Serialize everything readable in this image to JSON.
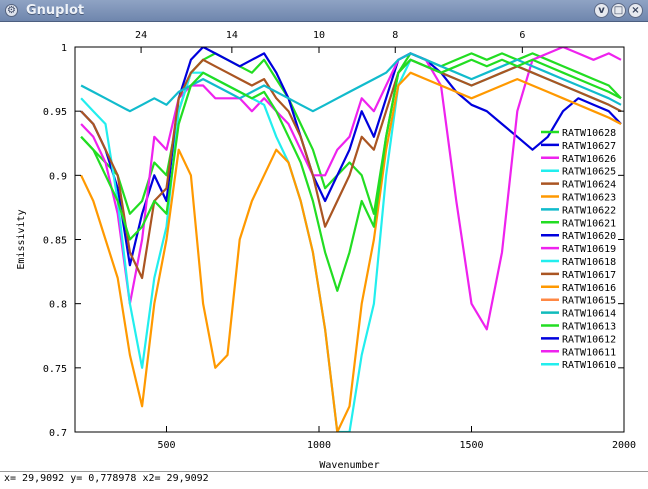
{
  "window": {
    "title": "Gnuplot",
    "app_icon_glyph": "⚙",
    "minimize_glyph": "v",
    "maximize_glyph": "□",
    "close_glyph": "×"
  },
  "status": {
    "coords": "x= 29,9092 y= 0,778978 x2= 29,9092"
  },
  "chart_data": {
    "type": "line",
    "xlabel": "Wavenumber",
    "ylabel": "Emissivity",
    "xlim": [
      200,
      2000
    ],
    "ylim": [
      0.7,
      1.0
    ],
    "x_ticks": [
      "500",
      "1000",
      "1500",
      "2000"
    ],
    "x_tick_values": [
      500,
      1000,
      1500,
      2000
    ],
    "y_ticks": [
      "1",
      "0.95",
      "0.9",
      "0.85",
      "0.8",
      "0.75",
      "0.7"
    ],
    "y_tick_values": [
      1.0,
      0.95,
      0.9,
      0.85,
      0.8,
      0.75,
      0.7
    ],
    "x2_label": "",
    "x2_ticks": [
      "24",
      "14",
      "10",
      "8",
      "6"
    ],
    "x2_tick_micrometers": [
      24,
      14,
      10,
      8,
      6
    ],
    "grid": false,
    "legend_position": "right",
    "x": [
      220,
      260,
      300,
      340,
      380,
      420,
      460,
      500,
      540,
      580,
      620,
      660,
      700,
      740,
      780,
      820,
      860,
      900,
      940,
      980,
      1020,
      1060,
      1100,
      1140,
      1180,
      1220,
      1260,
      1300,
      1350,
      1400,
      1450,
      1500,
      1550,
      1600,
      1650,
      1700,
      1750,
      1800,
      1850,
      1900,
      1950,
      1990
    ],
    "series": [
      {
        "name": "RATW10628",
        "color": "#22dd22",
        "values": [
          0.93,
          0.92,
          0.91,
          0.9,
          0.87,
          0.88,
          0.91,
          0.9,
          0.95,
          0.98,
          0.99,
          0.995,
          0.99,
          0.985,
          0.98,
          0.99,
          0.975,
          0.96,
          0.94,
          0.92,
          0.89,
          0.9,
          0.91,
          0.9,
          0.87,
          0.93,
          0.98,
          0.995,
          0.99,
          0.985,
          0.99,
          0.995,
          0.99,
          0.995,
          0.99,
          0.995,
          0.99,
          0.985,
          0.98,
          0.975,
          0.97,
          0.96
        ]
      },
      {
        "name": "RATW10627",
        "color": "#0000dd",
        "values": [
          0.95,
          0.94,
          0.92,
          0.89,
          0.83,
          0.87,
          0.9,
          0.88,
          0.96,
          0.99,
          1.0,
          0.995,
          0.99,
          0.985,
          0.99,
          0.995,
          0.98,
          0.96,
          0.93,
          0.9,
          0.88,
          0.9,
          0.92,
          0.95,
          0.93,
          0.96,
          0.99,
          0.995,
          0.99,
          0.98,
          0.965,
          0.955,
          0.95,
          0.94,
          0.93,
          0.92,
          0.93,
          0.95,
          0.96,
          0.955,
          0.95,
          0.94
        ]
      },
      {
        "name": "RATW10626",
        "color": "#ee22ee",
        "values": [
          0.94,
          0.93,
          0.91,
          0.87,
          0.8,
          0.85,
          0.93,
          0.92,
          0.96,
          0.97,
          0.97,
          0.96,
          0.96,
          0.96,
          0.95,
          0.96,
          0.95,
          0.94,
          0.92,
          0.9,
          0.9,
          0.92,
          0.93,
          0.96,
          0.95,
          0.97,
          0.99,
          0.995,
          0.99,
          0.97,
          0.88,
          0.8,
          0.78,
          0.84,
          0.95,
          0.99,
          0.995,
          1.0,
          0.995,
          0.99,
          0.995,
          0.99
        ]
      },
      {
        "name": "RATW10625",
        "color": "#22eeee",
        "values": [
          0.96,
          0.95,
          0.94,
          0.88,
          0.8,
          0.75,
          0.82,
          0.86,
          0.95,
          0.98,
          0.98,
          0.975,
          0.97,
          0.965,
          0.96,
          0.955,
          0.93,
          0.91,
          0.88,
          0.84,
          0.78,
          0.7,
          0.7,
          0.76,
          0.8,
          0.9,
          0.97,
          0.99,
          0.985,
          0.98,
          0.975,
          0.97,
          0.975,
          0.98,
          0.985,
          0.98,
          0.975,
          0.97,
          0.965,
          0.96,
          0.955,
          0.95
        ]
      },
      {
        "name": "RATW10624",
        "color": "#aa5522",
        "values": [
          0.95,
          0.94,
          0.92,
          0.9,
          0.84,
          0.82,
          0.88,
          0.89,
          0.96,
          0.98,
          0.99,
          0.985,
          0.98,
          0.975,
          0.97,
          0.975,
          0.96,
          0.95,
          0.93,
          0.9,
          0.86,
          0.88,
          0.9,
          0.93,
          0.92,
          0.95,
          0.98,
          0.99,
          0.985,
          0.98,
          0.975,
          0.97,
          0.975,
          0.98,
          0.985,
          0.98,
          0.975,
          0.97,
          0.965,
          0.96,
          0.955,
          0.95
        ]
      },
      {
        "name": "RATW10623",
        "color": "#ff9900",
        "values": [
          0.9,
          0.88,
          0.85,
          0.82,
          0.76,
          0.72,
          0.8,
          0.85,
          0.92,
          0.9,
          0.8,
          0.75,
          0.76,
          0.85,
          0.88,
          0.9,
          0.92,
          0.91,
          0.88,
          0.84,
          0.78,
          0.7,
          0.72,
          0.8,
          0.85,
          0.92,
          0.97,
          0.98,
          0.975,
          0.97,
          0.965,
          0.96,
          0.965,
          0.97,
          0.975,
          0.97,
          0.965,
          0.96,
          0.955,
          0.95,
          0.945,
          0.94
        ]
      },
      {
        "name": "RATW10622",
        "color": "#11bbcc",
        "values": [
          0.97,
          0.965,
          0.96,
          0.955,
          0.95,
          0.955,
          0.96,
          0.955,
          0.965,
          0.97,
          0.975,
          0.97,
          0.965,
          0.96,
          0.965,
          0.97,
          0.965,
          0.96,
          0.955,
          0.95,
          0.955,
          0.96,
          0.965,
          0.97,
          0.975,
          0.98,
          0.99,
          0.995,
          0.99,
          0.985,
          0.98,
          0.975,
          0.98,
          0.985,
          0.99,
          0.985,
          0.98,
          0.975,
          0.97,
          0.965,
          0.96,
          0.955
        ]
      },
      {
        "name": "RATW10621",
        "color": "#22dd22",
        "values": [
          0.93,
          0.92,
          0.9,
          0.88,
          0.85,
          0.86,
          0.88,
          0.87,
          0.94,
          0.97,
          0.98,
          0.975,
          0.97,
          0.965,
          0.96,
          0.965,
          0.95,
          0.93,
          0.91,
          0.88,
          0.84,
          0.81,
          0.84,
          0.88,
          0.86,
          0.93,
          0.98,
          0.99,
          0.985,
          0.98,
          0.985,
          0.99,
          0.985,
          0.99,
          0.985,
          0.99,
          0.985,
          0.98,
          0.975,
          0.97,
          0.965,
          0.96
        ]
      }
    ],
    "legend_extra": [
      "RATW10620",
      "RATW10619",
      "RATW10618",
      "RATW10617",
      "RATW10616",
      "RATW10615",
      "RATW10614",
      "RATW10613",
      "RATW10612",
      "RATW10611",
      "RATW10610"
    ],
    "legend_extra_colors": [
      "#0000dd",
      "#ee22ee",
      "#22eeee",
      "#aa5522",
      "#ff9900",
      "#ff8844",
      "#11bbbb",
      "#22dd22",
      "#0000dd",
      "#ee22ee",
      "#22eeee"
    ]
  }
}
